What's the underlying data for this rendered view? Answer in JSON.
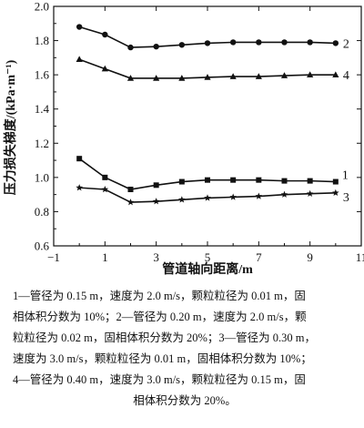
{
  "chart_data": {
    "type": "line",
    "xlabel": "管道轴向距离/m",
    "ylabel": "压力损失梯度/(kPa·m⁻¹)",
    "xlim": [
      -1,
      11
    ],
    "ylim": [
      0.6,
      2.0
    ],
    "xticks": [
      "−1",
      "1",
      "3",
      "5",
      "7",
      "9",
      "11"
    ],
    "yticks": [
      "0.6",
      "0.8",
      "1.0",
      "1.2",
      "1.4",
      "1.6",
      "1.8",
      "2.0"
    ],
    "grid": false,
    "x": [
      0,
      1,
      2,
      3,
      4,
      5,
      6,
      7,
      8,
      9,
      10
    ],
    "series": [
      {
        "name": "1",
        "marker": "square",
        "values": [
          1.11,
          1.0,
          0.93,
          0.955,
          0.975,
          0.985,
          0.985,
          0.985,
          0.98,
          0.98,
          0.975
        ]
      },
      {
        "name": "2",
        "marker": "circle",
        "values": [
          1.88,
          1.835,
          1.76,
          1.765,
          1.775,
          1.785,
          1.79,
          1.79,
          1.79,
          1.79,
          1.785
        ]
      },
      {
        "name": "3",
        "marker": "star",
        "values": [
          0.94,
          0.93,
          0.855,
          0.86,
          0.87,
          0.88,
          0.885,
          0.89,
          0.9,
          0.905,
          0.91
        ]
      },
      {
        "name": "4",
        "marker": "triangle",
        "values": [
          1.69,
          1.635,
          1.58,
          1.58,
          1.58,
          1.585,
          1.59,
          1.59,
          1.595,
          1.6,
          1.6
        ]
      }
    ]
  },
  "caption": {
    "line1": "1—管径为 0.15 m，速度为 2.0 m/s，颗粒粒径为 0.01 m，固",
    "line2": "相体积分数为 10%；2—管径为 0.20 m，速度为 2.0 m/s，颗",
    "line3": "粒粒径为 0.02 m，固相体积分数为 20%；3—管径为 0.30 m，",
    "line4": "速度为 3.0 m/s，颗粒粒径为 0.01 m，固相体积分数为 10%；",
    "line5": "4—管径为 0.40 m，速度为 3.0 m/s，颗粒粒径为 0.15 m，固",
    "line6": "相体积分数为 20%。"
  }
}
